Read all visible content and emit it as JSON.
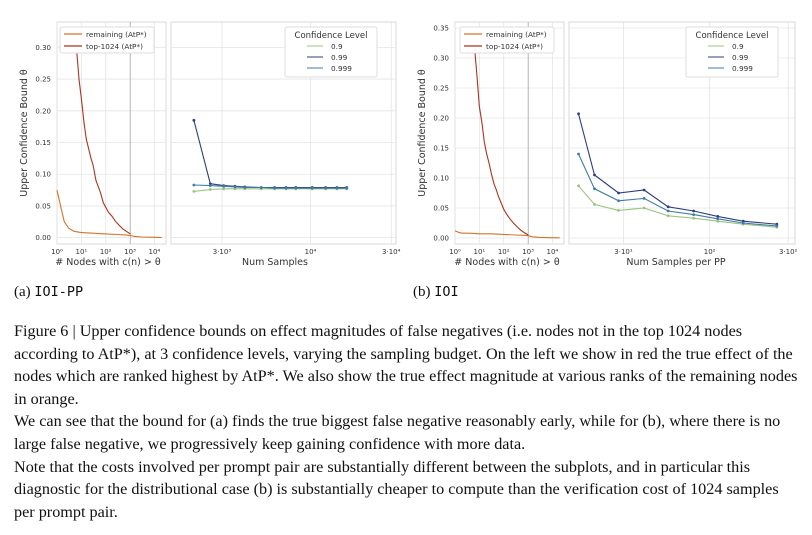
{
  "colors": {
    "remaining": "#d4732a",
    "top1024": "#a8351f",
    "conf_0_9": "#9cc480",
    "conf_0_99": "#2e3f7f",
    "conf_0_999": "#3f7ca8",
    "grid": "#e4e4e4",
    "vline": "#b4b4b4"
  },
  "figure": {
    "panels": [
      {
        "id": "a",
        "label_prefix": "(a) ",
        "label_code": "IOI-PP",
        "left_plot": {
          "ylabel": "Upper Confidence Bound θ",
          "xlabel": "# Nodes with c(n) > θ",
          "yticks": [
            "0.00",
            "0.05",
            "0.10",
            "0.15",
            "0.20",
            "0.25",
            "0.30"
          ],
          "xticks": [
            "10⁰",
            "10¹",
            "10²",
            "10³",
            "10⁴"
          ],
          "legend": [
            "remaining (AtP*)",
            "top-1024 (AtP*)"
          ]
        },
        "right_plot": {
          "xlabel": "Num Samples",
          "xticks": [
            "3·10³",
            "10⁴",
            "3·10⁴"
          ],
          "legend_title": "Confidence Level",
          "legend": [
            "0.9",
            "0.99",
            "0.999"
          ]
        }
      },
      {
        "id": "b",
        "label_prefix": "(b) ",
        "label_code": "IOI",
        "left_plot": {
          "ylabel": "Upper Confidence Bound θ",
          "xlabel": "# Nodes with c(n) > θ",
          "yticks": [
            "0.00",
            "0.05",
            "0.10",
            "0.15",
            "0.20",
            "0.25",
            "0.30",
            "0.35"
          ],
          "xticks": [
            "10⁰",
            "10¹",
            "10²",
            "10³",
            "10⁴"
          ],
          "legend": [
            "remaining (AtP*)",
            "top-1024 (AtP*)"
          ]
        },
        "right_plot": {
          "xlabel": "Num Samples per PP",
          "xticks": [
            "3·10¹",
            "10²",
            "3·10²"
          ],
          "legend_title": "Confidence Level",
          "legend": [
            "0.9",
            "0.99",
            "0.999"
          ]
        }
      }
    ]
  },
  "chart_data": [
    {
      "type": "line",
      "panel": "a-left",
      "xscale": "log",
      "xlim": [
        1,
        30000
      ],
      "ylim": [
        -0.01,
        0.34
      ],
      "xlabel": "# Nodes with c(n) > θ",
      "ylabel": "Upper Confidence Bound θ",
      "vline_x": 1024,
      "series": [
        {
          "name": "remaining (AtP*)",
          "color_key": "remaining",
          "x": [
            1,
            1.5,
            2,
            3,
            5,
            10,
            30,
            100,
            300,
            700,
            1000,
            1500,
            3000,
            10000,
            20000
          ],
          "y": [
            0.075,
            0.045,
            0.025,
            0.015,
            0.01,
            0.008,
            0.007,
            0.006,
            0.005,
            0.004,
            0.0035,
            0.002,
            0.001,
            0.0005,
            0.0003
          ]
        },
        {
          "name": "top-1024 (AtP*)",
          "color_key": "top1024",
          "x": [
            6,
            8,
            10,
            13,
            16,
            20,
            25,
            30,
            40,
            50,
            60,
            80,
            100,
            130,
            180,
            250,
            350,
            500,
            700,
            1024
          ],
          "y": [
            0.31,
            0.25,
            0.22,
            0.18,
            0.155,
            0.14,
            0.125,
            0.115,
            0.09,
            0.08,
            0.072,
            0.055,
            0.048,
            0.04,
            0.034,
            0.026,
            0.02,
            0.014,
            0.01,
            0.006
          ]
        }
      ]
    },
    {
      "type": "line",
      "panel": "a-right",
      "xscale": "log",
      "xlim": [
        1500,
        32000
      ],
      "ylim": [
        -0.01,
        0.34
      ],
      "xlabel": "Num Samples",
      "legend_title": "Confidence Level",
      "x": [
        2048,
        2560,
        3072,
        3584,
        4096,
        5120,
        6144,
        7168,
        8192,
        10240,
        12288,
        14336,
        16384
      ],
      "series": [
        {
          "name": "0.9",
          "color_key": "conf_0_9",
          "values": [
            0.073,
            0.076,
            0.077,
            0.077,
            0.077,
            0.077,
            0.077,
            0.077,
            0.077,
            0.077,
            0.077,
            0.077,
            0.077
          ]
        },
        {
          "name": "0.99",
          "color_key": "conf_0_99",
          "values": [
            0.185,
            0.085,
            0.082,
            0.081,
            0.08,
            0.079,
            0.079,
            0.079,
            0.079,
            0.079,
            0.079,
            0.079,
            0.079
          ]
        },
        {
          "name": "0.999",
          "color_key": "conf_0_999",
          "values": [
            0.083,
            0.082,
            0.081,
            0.08,
            0.079,
            0.079,
            0.078,
            0.078,
            0.078,
            0.078,
            0.078,
            0.078,
            0.078
          ]
        }
      ]
    },
    {
      "type": "line",
      "panel": "b-left",
      "xscale": "log",
      "xlim": [
        1,
        30000
      ],
      "ylim": [
        -0.01,
        0.36
      ],
      "xlabel": "# Nodes with c(n) > θ",
      "ylabel": "Upper Confidence Bound θ",
      "vline_x": 1024,
      "series": [
        {
          "name": "remaining (AtP*)",
          "color_key": "remaining",
          "x": [
            1,
            1.5,
            2,
            4,
            10,
            30,
            100,
            300,
            700,
            1000,
            1500,
            3000,
            10000,
            20000
          ],
          "y": [
            0.012,
            0.009,
            0.008,
            0.008,
            0.007,
            0.007,
            0.006,
            0.005,
            0.0045,
            0.004,
            0.002,
            0.001,
            0.0005,
            0.0003
          ]
        },
        {
          "name": "top-1024 (AtP*)",
          "color_key": "top1024",
          "x": [
            6,
            8,
            10,
            13,
            16,
            20,
            25,
            30,
            40,
            50,
            60,
            80,
            100,
            130,
            180,
            250,
            350,
            500,
            700,
            1024
          ],
          "y": [
            0.33,
            0.27,
            0.22,
            0.19,
            0.16,
            0.14,
            0.125,
            0.11,
            0.09,
            0.08,
            0.07,
            0.058,
            0.048,
            0.04,
            0.032,
            0.025,
            0.019,
            0.013,
            0.009,
            0.005
          ]
        }
      ]
    },
    {
      "type": "line",
      "panel": "b-right",
      "xscale": "log",
      "xlim": [
        14,
        330
      ],
      "ylim": [
        -0.01,
        0.36
      ],
      "xlabel": "Num Samples per PP",
      "legend_title": "Confidence Level",
      "x": [
        16,
        20,
        28,
        40,
        56,
        80,
        112,
        160,
        256
      ],
      "series": [
        {
          "name": "0.9",
          "color_key": "conf_0_9",
          "values": [
            0.087,
            0.056,
            0.046,
            0.05,
            0.037,
            0.033,
            0.028,
            0.023,
            0.018
          ]
        },
        {
          "name": "0.99",
          "color_key": "conf_0_99",
          "values": [
            0.207,
            0.105,
            0.075,
            0.08,
            0.052,
            0.045,
            0.036,
            0.028,
            0.023
          ]
        },
        {
          "name": "0.999",
          "color_key": "conf_0_999",
          "values": [
            0.14,
            0.082,
            0.062,
            0.066,
            0.045,
            0.039,
            0.032,
            0.025,
            0.02
          ]
        }
      ]
    }
  ],
  "caption": {
    "paragraphs": [
      "Figure 6 | Upper confidence bounds on effect magnitudes of false negatives (i.e. nodes not in the top 1024 nodes according to AtP*), at 3 confidence levels, varying the sampling budget. On the left we show in red the true effect of the nodes which are ranked highest by AtP*. We also show the true effect magnitude at various ranks of the remaining nodes in orange.",
      "We can see that the bound for (a) finds the true biggest false negative reasonably early, while for (b), where there is no large false negative, we progressively keep gaining confidence with more data.",
      "Note that the costs involved per prompt pair are substantially different between the subplots, and in particular this diagnostic for the distributional case (b) is substantially cheaper to compute than the verification cost of 1024 samples per prompt pair."
    ]
  }
}
